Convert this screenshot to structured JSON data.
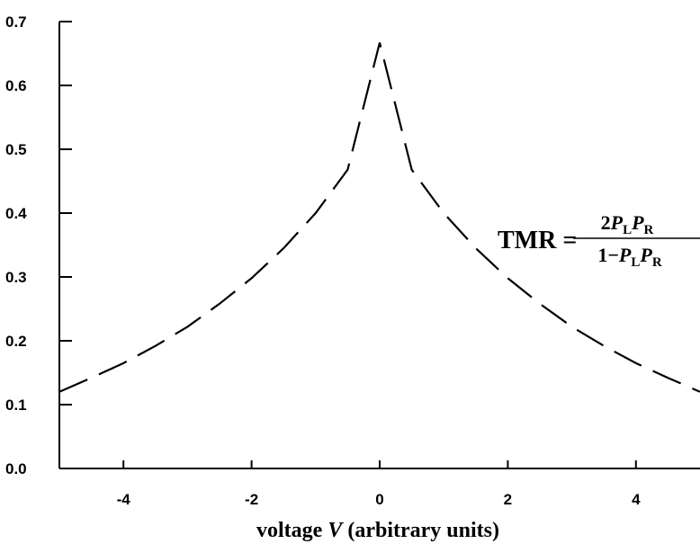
{
  "chart_data": {
    "type": "line",
    "xlabel_prefix": "voltage ",
    "xlabel_var": "V",
    "xlabel_suffix": " (arbitrary units)",
    "ylabel": "",
    "xlim": [
      -5,
      5
    ],
    "ylim": [
      0,
      0.7
    ],
    "x_ticks": [
      -4,
      -2,
      0,
      2,
      4
    ],
    "x_tick_labels": [
      "-4",
      "-2",
      "0",
      "2",
      "4"
    ],
    "y_ticks": [
      0,
      0.1,
      0.2,
      0.3,
      0.4,
      0.5,
      0.6,
      0.7
    ],
    "y_tick_labels": [
      "0.0",
      "0.1",
      "0.2",
      "0.3",
      "0.4",
      "0.5",
      "0.6",
      "0.7"
    ],
    "grid": false,
    "line_style": "dashed",
    "series": [
      {
        "x": [
          -5,
          -4.5,
          -4,
          -3.5,
          -3,
          -2.5,
          -2,
          -1.5,
          -1,
          -0.5,
          0,
          0.5,
          1,
          1.5,
          2,
          2.5,
          3,
          3.5,
          4,
          4.5,
          5
        ],
        "y": [
          0.12,
          0.142,
          0.165,
          0.192,
          0.222,
          0.258,
          0.298,
          0.345,
          0.4,
          0.468,
          0.667,
          0.468,
          0.4,
          0.345,
          0.298,
          0.258,
          0.222,
          0.192,
          0.165,
          0.142,
          0.12
        ]
      }
    ],
    "annotation": {
      "lhs": "TMR =",
      "num_coef": "2",
      "num_p1": "P",
      "num_s1": "L",
      "num_p2": "P",
      "num_s2": "R",
      "den_prefix": "1−",
      "den_p1": "P",
      "den_s1": "L",
      "den_p2": "P",
      "den_s2": "R"
    }
  }
}
